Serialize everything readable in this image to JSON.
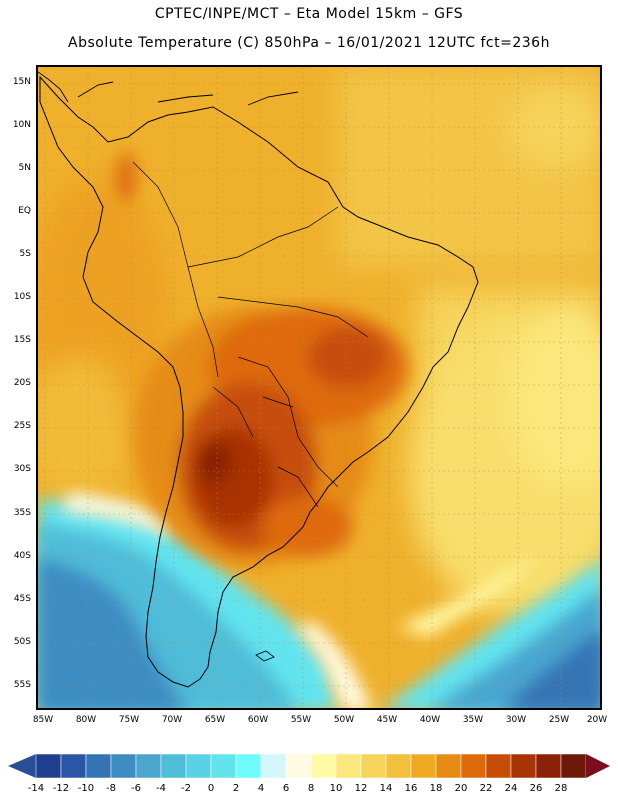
{
  "header": {
    "title_line1": "CPTEC/INPE/MCT –   Eta Model 15km – GFS",
    "title_line2": "Absolute Temperature (C) 850hPa – 16/01/2021 12UTC fct=236h"
  },
  "axes": {
    "lat_labels": [
      "15N",
      "10N",
      "5N",
      "EQ",
      "5S",
      "10S",
      "15S",
      "20S",
      "25S",
      "30S",
      "35S",
      "40S",
      "45S",
      "50S",
      "55S"
    ],
    "lon_labels": [
      "85W",
      "80W",
      "75W",
      "70W",
      "65W",
      "60W",
      "55W",
      "50W",
      "45W",
      "40W",
      "35W",
      "30W",
      "25W",
      "20W"
    ]
  },
  "colorbar": {
    "labels": [
      "-14",
      "-12",
      "-10",
      "-8",
      "-6",
      "-4",
      "-2",
      "0",
      "2",
      "4",
      "6",
      "8",
      "10",
      "12",
      "14",
      "16",
      "18",
      "20",
      "22",
      "24",
      "26",
      "28"
    ],
    "colors": [
      "#1f3f8f",
      "#2a57a5",
      "#3474b5",
      "#3e8cc2",
      "#4aa6cf",
      "#4fbcd8",
      "#5ad2e6",
      "#62e4ef",
      "#6ffcfc",
      "#d4f7fb",
      "#fffbe3",
      "#fffaa6",
      "#fbe77b",
      "#f6d35a",
      "#f1c13e",
      "#eeaa22",
      "#e68c15",
      "#de6a0b",
      "#c64d07",
      "#a83305",
      "#8b2106",
      "#6d1908"
    ],
    "under_color": "#2a4f96",
    "over_color": "#7a0d20"
  },
  "regions": {
    "continent": "south-america",
    "coastline_color": "#000000"
  }
}
